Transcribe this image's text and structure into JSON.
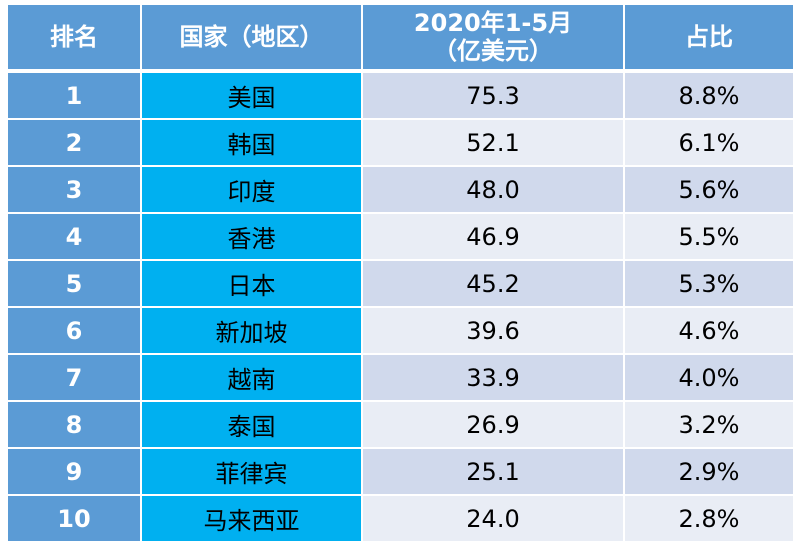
{
  "chart_data": {
    "type": "table",
    "columns": [
      "排名",
      "国家（地区）",
      "2020年1-5月（亿美元）",
      "占比"
    ],
    "header": {
      "rank": "排名",
      "country": "国家（地区）",
      "value_line1": "2020年1-5月",
      "value_line2": "（亿美元）",
      "share": "占比"
    },
    "rows": [
      {
        "rank": "1",
        "country": "美国",
        "value": "75.3",
        "share": "8.8%"
      },
      {
        "rank": "2",
        "country": "韩国",
        "value": "52.1",
        "share": "6.1%"
      },
      {
        "rank": "3",
        "country": "印度",
        "value": "48.0",
        "share": "5.6%"
      },
      {
        "rank": "4",
        "country": "香港",
        "value": "46.9",
        "share": "5.5%"
      },
      {
        "rank": "5",
        "country": "日本",
        "value": "45.2",
        "share": "5.3%"
      },
      {
        "rank": "6",
        "country": "新加坡",
        "value": "39.6",
        "share": "4.6%"
      },
      {
        "rank": "7",
        "country": "越南",
        "value": "33.9",
        "share": "4.0%"
      },
      {
        "rank": "8",
        "country": "泰国",
        "value": "26.9",
        "share": "3.2%"
      },
      {
        "rank": "9",
        "country": "菲律宾",
        "value": "25.1",
        "share": "2.9%"
      },
      {
        "rank": "10",
        "country": "马来西亚",
        "value": "24.0",
        "share": "2.8%"
      }
    ]
  },
  "colors": {
    "header_bg": "#5b9bd5",
    "rank_bg": "#5b9bd5",
    "country_bg": "#00b0f0",
    "row_odd_bg": "#d0d9ec",
    "row_even_bg": "#e9edf5",
    "header_text": "#ffffff"
  }
}
